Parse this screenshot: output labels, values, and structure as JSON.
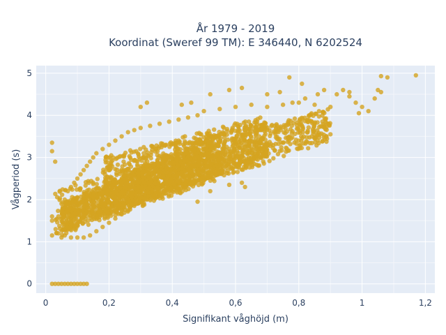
{
  "chart_data": {
    "type": "scatter",
    "title": "År 1979 - 2019",
    "subtitle": "Koordinat (Sweref 99 TM): E 346440, N 6202524",
    "xlabel": "Signifikant våghöjd (m)",
    "ylabel": "Vågperiod (s)",
    "xlim": [
      -0.03,
      1.23
    ],
    "ylim": [
      -0.22,
      5.18
    ],
    "xticks": [
      0,
      0.2,
      0.4,
      0.6,
      0.8,
      1.0,
      1.2
    ],
    "xtick_labels": [
      "0",
      "0,2",
      "0,4",
      "0,6",
      "0,8",
      "1",
      "1,2"
    ],
    "yticks": [
      0,
      1,
      2,
      3,
      4,
      5
    ],
    "ytick_labels": [
      "0",
      "1",
      "2",
      "3",
      "4",
      "5"
    ],
    "grid": true,
    "legend": "none",
    "marker_color": "#d4a420",
    "background": "#e5ecf6",
    "series": [
      {
        "name": "",
        "points": [
          [
            0.02,
            0.0
          ],
          [
            0.03,
            0.0
          ],
          [
            0.04,
            0.0
          ],
          [
            0.05,
            0.0
          ],
          [
            0.06,
            0.0
          ],
          [
            0.07,
            0.0
          ],
          [
            0.08,
            0.0
          ],
          [
            0.09,
            0.0
          ],
          [
            0.1,
            0.0
          ],
          [
            0.11,
            0.0
          ],
          [
            0.12,
            0.0
          ],
          [
            0.13,
            0.0
          ],
          [
            0.02,
            3.35
          ],
          [
            0.02,
            3.15
          ],
          [
            0.03,
            2.9
          ],
          [
            0.02,
            1.6
          ],
          [
            0.02,
            1.5
          ],
          [
            0.02,
            1.15
          ],
          [
            0.04,
            1.2
          ],
          [
            0.05,
            1.1
          ],
          [
            0.06,
            1.15
          ],
          [
            0.08,
            1.1
          ],
          [
            0.1,
            1.1
          ],
          [
            0.12,
            1.1
          ],
          [
            0.14,
            1.15
          ],
          [
            0.16,
            1.25
          ],
          [
            0.18,
            1.35
          ],
          [
            0.2,
            1.45
          ],
          [
            0.22,
            1.55
          ],
          [
            0.24,
            1.65
          ],
          [
            0.26,
            1.75
          ],
          [
            0.28,
            1.85
          ],
          [
            0.3,
            1.95
          ],
          [
            0.32,
            2.0
          ],
          [
            0.34,
            2.05
          ],
          [
            0.36,
            2.1
          ],
          [
            0.38,
            2.15
          ],
          [
            0.4,
            2.2
          ],
          [
            0.42,
            2.25
          ],
          [
            0.44,
            2.3
          ],
          [
            0.46,
            2.35
          ],
          [
            0.48,
            2.45
          ],
          [
            0.5,
            2.55
          ],
          [
            0.52,
            2.65
          ],
          [
            0.55,
            2.8
          ],
          [
            0.58,
            2.95
          ],
          [
            0.6,
            3.05
          ],
          [
            0.65,
            3.2
          ],
          [
            0.7,
            3.3
          ],
          [
            0.75,
            3.35
          ],
          [
            0.8,
            3.4
          ],
          [
            0.85,
            3.45
          ],
          [
            0.9,
            3.55
          ],
          [
            0.04,
            1.6
          ],
          [
            0.05,
            1.9
          ],
          [
            0.06,
            2.0
          ],
          [
            0.07,
            2.2
          ],
          [
            0.08,
            2.3
          ],
          [
            0.09,
            2.4
          ],
          [
            0.1,
            2.5
          ],
          [
            0.11,
            2.6
          ],
          [
            0.12,
            2.7
          ],
          [
            0.13,
            2.8
          ],
          [
            0.14,
            2.9
          ],
          [
            0.15,
            3.0
          ],
          [
            0.16,
            3.1
          ],
          [
            0.18,
            3.2
          ],
          [
            0.2,
            3.3
          ],
          [
            0.22,
            3.4
          ],
          [
            0.24,
            3.5
          ],
          [
            0.26,
            3.6
          ],
          [
            0.28,
            3.65
          ],
          [
            0.3,
            3.7
          ],
          [
            0.33,
            3.75
          ],
          [
            0.36,
            3.8
          ],
          [
            0.39,
            3.85
          ],
          [
            0.42,
            3.9
          ],
          [
            0.45,
            3.95
          ],
          [
            0.48,
            4.0
          ],
          [
            0.5,
            4.1
          ],
          [
            0.55,
            4.15
          ],
          [
            0.6,
            4.2
          ],
          [
            0.65,
            4.25
          ],
          [
            0.7,
            4.2
          ],
          [
            0.75,
            4.25
          ],
          [
            0.8,
            4.3
          ],
          [
            0.85,
            4.25
          ],
          [
            0.9,
            4.2
          ],
          [
            0.3,
            4.2
          ],
          [
            0.32,
            4.3
          ],
          [
            0.43,
            4.25
          ],
          [
            0.46,
            4.3
          ],
          [
            0.52,
            4.5
          ],
          [
            0.58,
            4.6
          ],
          [
            0.62,
            4.65
          ],
          [
            0.7,
            4.5
          ],
          [
            0.74,
            4.55
          ],
          [
            0.78,
            4.3
          ],
          [
            0.82,
            4.4
          ],
          [
            0.86,
            4.5
          ],
          [
            0.88,
            4.6
          ],
          [
            0.92,
            4.5
          ],
          [
            0.96,
            4.55
          ],
          [
            0.98,
            4.3
          ],
          [
            1.0,
            4.2
          ],
          [
            1.02,
            4.1
          ],
          [
            1.04,
            4.4
          ],
          [
            1.05,
            4.6
          ],
          [
            1.06,
            4.55
          ],
          [
            1.08,
            4.9
          ],
          [
            1.06,
            4.93
          ],
          [
            1.17,
            4.95
          ],
          [
            0.77,
            4.9
          ],
          [
            0.81,
            4.75
          ],
          [
            0.94,
            4.6
          ],
          [
            0.96,
            4.45
          ],
          [
            0.99,
            4.05
          ],
          [
            0.62,
            2.4
          ],
          [
            0.63,
            2.3
          ],
          [
            0.58,
            2.35
          ],
          [
            0.48,
            1.95
          ],
          [
            0.52,
            2.2
          ],
          [
            0.44,
            2.6
          ],
          [
            0.38,
            3.3
          ],
          [
            0.42,
            3.4
          ],
          [
            0.44,
            3.5
          ]
        ],
        "bands": [
          {
            "x0": 0.03,
            "x1": 0.9,
            "lo0": 1.1,
            "lo1": 3.4,
            "hi0": 2.2,
            "hi1": 4.2
          },
          {
            "x0": 0.05,
            "x1": 0.55,
            "lo0": 1.25,
            "lo1": 2.6,
            "hi0": 1.9,
            "hi1": 3.6
          },
          {
            "x0": 0.18,
            "x1": 0.7,
            "lo0": 1.6,
            "lo1": 3.0,
            "hi0": 3.0,
            "hi1": 4.0
          }
        ]
      }
    ]
  }
}
